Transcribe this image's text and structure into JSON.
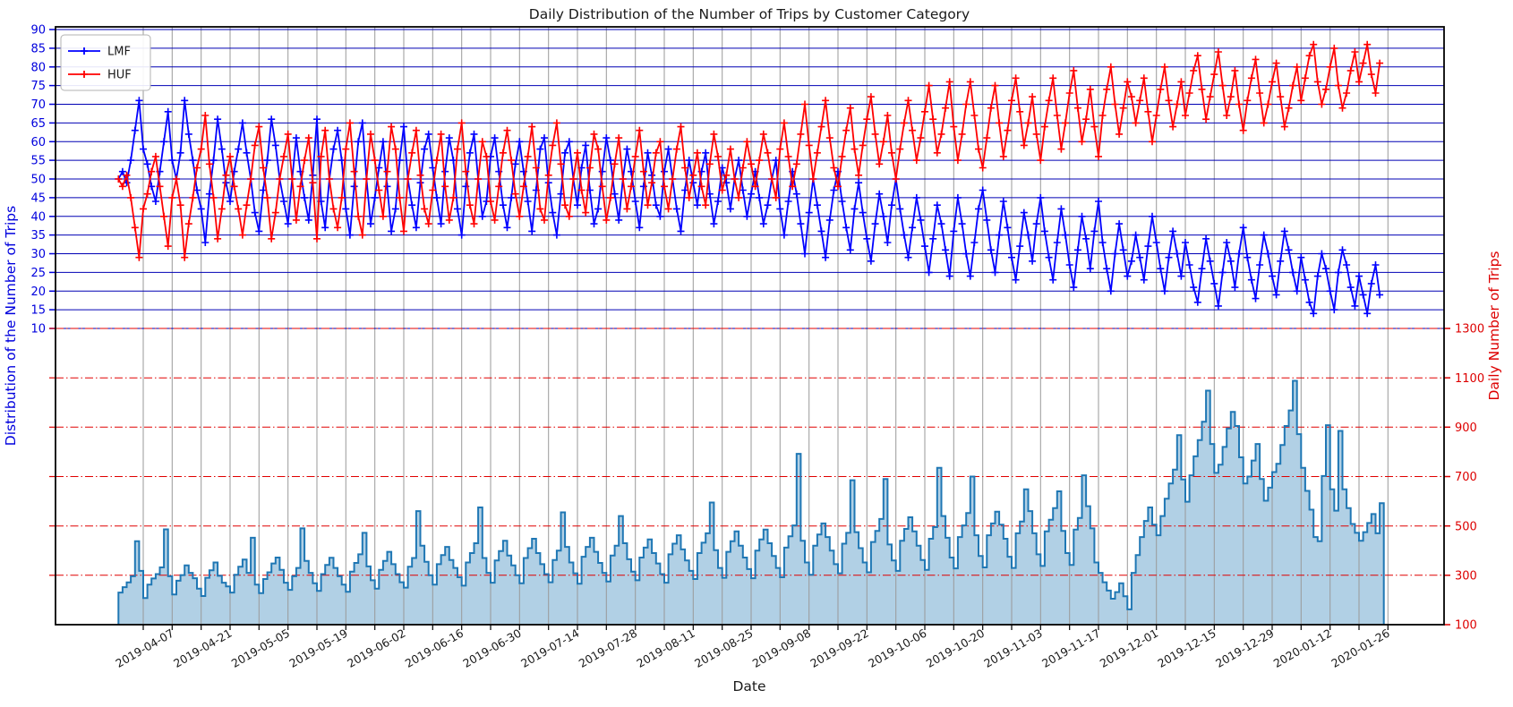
{
  "title": "Daily Distribution of the Number of Trips by Customer Category",
  "xlabel": "Date",
  "left_axis": {
    "label": "Distribution of the Number of Trips",
    "color": "#0000dd",
    "ticks": [
      10,
      15,
      20,
      25,
      30,
      35,
      40,
      45,
      50,
      55,
      60,
      65,
      70,
      75,
      80,
      85,
      90
    ]
  },
  "right_axis": {
    "label": "Daily Number of Trips",
    "color": "#dd0000",
    "ticks": [
      100,
      300,
      500,
      700,
      900,
      1100,
      1300
    ],
    "grid_values": [
      300,
      500,
      700,
      900,
      1100,
      1300
    ]
  },
  "legend": {
    "items": [
      {
        "label": "LMF",
        "color": "#0000ff"
      },
      {
        "label": "HUF",
        "color": "#ff0000"
      }
    ]
  },
  "colors": {
    "blue_grid": "#0000b4",
    "red_grid": "#e00000",
    "vertical_grid": "#999999",
    "spine": "#000000",
    "tick_label": "#1a1a1a"
  },
  "chart_data": {
    "type": "line+step-area",
    "start_date": "2019-03-25",
    "grid_base_date": "2019-03-31",
    "x_tick_labels": [
      "2019-04-07",
      "2019-04-21",
      "2019-05-05",
      "2019-05-19",
      "2019-06-02",
      "2019-06-16",
      "2019-06-30",
      "2019-07-14",
      "2019-07-28",
      "2019-08-11",
      "2019-08-25",
      "2019-09-08",
      "2019-09-22",
      "2019-10-06",
      "2019-10-20",
      "2019-11-03",
      "2019-11-17",
      "2019-12-01",
      "2019-12-15",
      "2019-12-29",
      "2020-01-12",
      "2020-01-26"
    ],
    "left_ylim_top": 90,
    "right_ylim_bottom": 100,
    "series": [
      {
        "name": "LMF",
        "axis": "left",
        "kind": "line",
        "marker": "+",
        "color": "#0000ff",
        "values": [
          50,
          52,
          49,
          55,
          63,
          71,
          58,
          54,
          48,
          44,
          52,
          60,
          68,
          55,
          50,
          57,
          71,
          62,
          55,
          47,
          42,
          33,
          46,
          55,
          66,
          58,
          49,
          44,
          52,
          58,
          65,
          57,
          50,
          41,
          36,
          47,
          55,
          66,
          59,
          50,
          44,
          38,
          50,
          61,
          52,
          45,
          39,
          51,
          66,
          44,
          37,
          50,
          58,
          63,
          55,
          42,
          35,
          48,
          60,
          65,
          50,
          38,
          45,
          53,
          60,
          48,
          36,
          42,
          55,
          64,
          50,
          43,
          37,
          49,
          58,
          62,
          53,
          45,
          38,
          52,
          61,
          55,
          42,
          35,
          48,
          57,
          62,
          50,
          40,
          44,
          56,
          61,
          52,
          43,
          37,
          45,
          54,
          60,
          52,
          44,
          36,
          47,
          58,
          61,
          49,
          41,
          35,
          46,
          57,
          60,
          50,
          43,
          53,
          59,
          47,
          38,
          42,
          52,
          61,
          55,
          46,
          39,
          50,
          58,
          52,
          44,
          37,
          48,
          57,
          51,
          43,
          40,
          52,
          58,
          50,
          42,
          36,
          47,
          55,
          49,
          43,
          52,
          57,
          46,
          38,
          44,
          53,
          49,
          42,
          50,
          55,
          47,
          40,
          46,
          52,
          45,
          38,
          43,
          50,
          55,
          42,
          35,
          44,
          52,
          46,
          38,
          30,
          41,
          50,
          43,
          36,
          29,
          39,
          47,
          52,
          44,
          37,
          31,
          42,
          49,
          41,
          34,
          28,
          38,
          46,
          40,
          33,
          43,
          50,
          42,
          35,
          29,
          37,
          45,
          39,
          32,
          25,
          34,
          43,
          38,
          31,
          24,
          36,
          45,
          38,
          30,
          24,
          33,
          42,
          47,
          39,
          31,
          25,
          35,
          44,
          37,
          29,
          23,
          32,
          41,
          35,
          28,
          38,
          45,
          36,
          29,
          23,
          33,
          42,
          35,
          27,
          21,
          31,
          40,
          34,
          26,
          36,
          44,
          33,
          26,
          20,
          30,
          38,
          31,
          24,
          28,
          35,
          29,
          23,
          32,
          40,
          33,
          26,
          20,
          29,
          36,
          30,
          24,
          33,
          27,
          21,
          17,
          26,
          34,
          28,
          22,
          16,
          25,
          33,
          28,
          21,
          30,
          37,
          29,
          23,
          18,
          27,
          35,
          30,
          24,
          19,
          28,
          36,
          31,
          25,
          20,
          29,
          23,
          17,
          14,
          24,
          30,
          26,
          20,
          15,
          25,
          31,
          27,
          21,
          16,
          24,
          19,
          14,
          22,
          27,
          19
        ]
      },
      {
        "name": "HUF",
        "axis": "left",
        "kind": "line",
        "marker": "+",
        "color": "#ff0000",
        "values": [
          50,
          48,
          51,
          45,
          37,
          29,
          42,
          46,
          52,
          56,
          48,
          40,
          32,
          45,
          50,
          43,
          29,
          38,
          45,
          53,
          58,
          67,
          54,
          45,
          34,
          42,
          51,
          56,
          48,
          42,
          35,
          43,
          50,
          59,
          64,
          53,
          45,
          34,
          41,
          50,
          56,
          62,
          50,
          39,
          48,
          55,
          61,
          49,
          34,
          56,
          63,
          50,
          42,
          37,
          45,
          58,
          65,
          52,
          40,
          35,
          50,
          62,
          55,
          47,
          40,
          52,
          64,
          58,
          45,
          36,
          50,
          57,
          63,
          51,
          42,
          38,
          47,
          55,
          62,
          48,
          39,
          45,
          58,
          65,
          52,
          43,
          38,
          50,
          60,
          56,
          44,
          39,
          48,
          57,
          63,
          55,
          46,
          40,
          48,
          56,
          64,
          53,
          42,
          39,
          51,
          59,
          65,
          54,
          43,
          40,
          50,
          57,
          47,
          41,
          53,
          62,
          58,
          48,
          39,
          45,
          54,
          61,
          50,
          42,
          48,
          56,
          63,
          52,
          43,
          49,
          57,
          60,
          48,
          42,
          50,
          58,
          64,
          53,
          45,
          51,
          57,
          48,
          43,
          54,
          62,
          56,
          47,
          51,
          58,
          50,
          45,
          53,
          60,
          54,
          48,
          55,
          62,
          57,
          50,
          45,
          58,
          65,
          56,
          48,
          54,
          62,
          70,
          59,
          50,
          57,
          64,
          71,
          61,
          53,
          48,
          56,
          63,
          69,
          58,
          51,
          59,
          66,
          72,
          62,
          54,
          60,
          67,
          57,
          50,
          58,
          65,
          71,
          63,
          55,
          61,
          68,
          75,
          66,
          57,
          62,
          69,
          76,
          64,
          55,
          62,
          70,
          76,
          67,
          58,
          53,
          61,
          69,
          75,
          65,
          56,
          63,
          71,
          77,
          68,
          59,
          65,
          72,
          62,
          55,
          64,
          71,
          77,
          67,
          58,
          65,
          73,
          79,
          69,
          60,
          66,
          74,
          64,
          56,
          67,
          74,
          80,
          70,
          62,
          69,
          76,
          72,
          65,
          71,
          77,
          68,
          60,
          67,
          74,
          80,
          71,
          64,
          70,
          76,
          67,
          73,
          79,
          83,
          74,
          66,
          72,
          78,
          84,
          75,
          67,
          72,
          79,
          70,
          63,
          71,
          77,
          82,
          73,
          65,
          70,
          76,
          81,
          72,
          64,
          69,
          75,
          80,
          71,
          77,
          83,
          86,
          76,
          70,
          74,
          80,
          85,
          75,
          69,
          73,
          79,
          84,
          76,
          81,
          86,
          78,
          73,
          81
        ]
      },
      {
        "name": "Daily Number of Trips",
        "axis": "right",
        "kind": "step-area",
        "color": "#1f77b4",
        "fill_opacity": 0.35,
        "values": [
          230,
          252,
          271,
          296,
          438,
          318,
          208,
          262,
          287,
          305,
          332,
          486,
          296,
          222,
          278,
          301,
          340,
          310,
          288,
          246,
          216,
          290,
          320,
          352,
          298,
          270,
          255,
          230,
          302,
          335,
          364,
          310,
          452,
          262,
          228,
          285,
          312,
          348,
          372,
          322,
          270,
          241,
          296,
          330,
          490,
          358,
          310,
          268,
          237,
          305,
          342,
          371,
          330,
          296,
          262,
          233,
          315,
          350,
          385,
          472,
          336,
          280,
          246,
          322,
          358,
          395,
          345,
          305,
          272,
          250,
          335,
          370,
          560,
          420,
          355,
          300,
          262,
          345,
          382,
          415,
          362,
          330,
          292,
          258,
          352,
          390,
          430,
          575,
          370,
          310,
          270,
          360,
          398,
          440,
          380,
          340,
          300,
          268,
          370,
          410,
          448,
          390,
          345,
          305,
          272,
          362,
          400,
          555,
          415,
          352,
          308,
          266,
          375,
          415,
          452,
          395,
          350,
          310,
          275,
          380,
          420,
          540,
          430,
          365,
          315,
          280,
          372,
          412,
          445,
          390,
          348,
          305,
          270,
          385,
          428,
          462,
          405,
          360,
          318,
          285,
          390,
          432,
          470,
          595,
          402,
          330,
          290,
          395,
          438,
          478,
          420,
          372,
          325,
          288,
          400,
          445,
          485,
          430,
          378,
          330,
          292,
          412,
          458,
          502,
          792,
          440,
          352,
          302,
          420,
          465,
          510,
          455,
          400,
          345,
          308,
          428,
          472,
          685,
          475,
          410,
          352,
          312,
          435,
          480,
          528,
          690,
          425,
          360,
          318,
          440,
          488,
          535,
          478,
          420,
          362,
          322,
          448,
          495,
          735,
          540,
          452,
          372,
          328,
          455,
          502,
          552,
          700,
          462,
          378,
          332,
          462,
          510,
          558,
          505,
          448,
          375,
          330,
          470,
          518,
          648,
          560,
          470,
          385,
          338,
          478,
          525,
          572,
          640,
          480,
          390,
          342,
          485,
          532,
          705,
          580,
          490,
          352,
          310,
          272,
          238,
          205,
          232,
          268,
          215,
          162,
          310,
          382,
          455,
          520,
          575,
          505,
          462,
          540,
          610,
          672,
          728,
          868,
          688,
          598,
          705,
          782,
          848,
          922,
          1048,
          832,
          715,
          748,
          820,
          895,
          962,
          905,
          778,
          672,
          700,
          765,
          832,
          690,
          602,
          655,
          718,
          752,
          828,
          905,
          968,
          1088,
          872,
          735,
          642,
          566,
          455,
          438,
          702,
          908,
          648,
          562,
          885,
          648,
          572,
          508,
          472,
          440,
          475,
          512,
          548,
          470,
          592
        ]
      }
    ]
  }
}
